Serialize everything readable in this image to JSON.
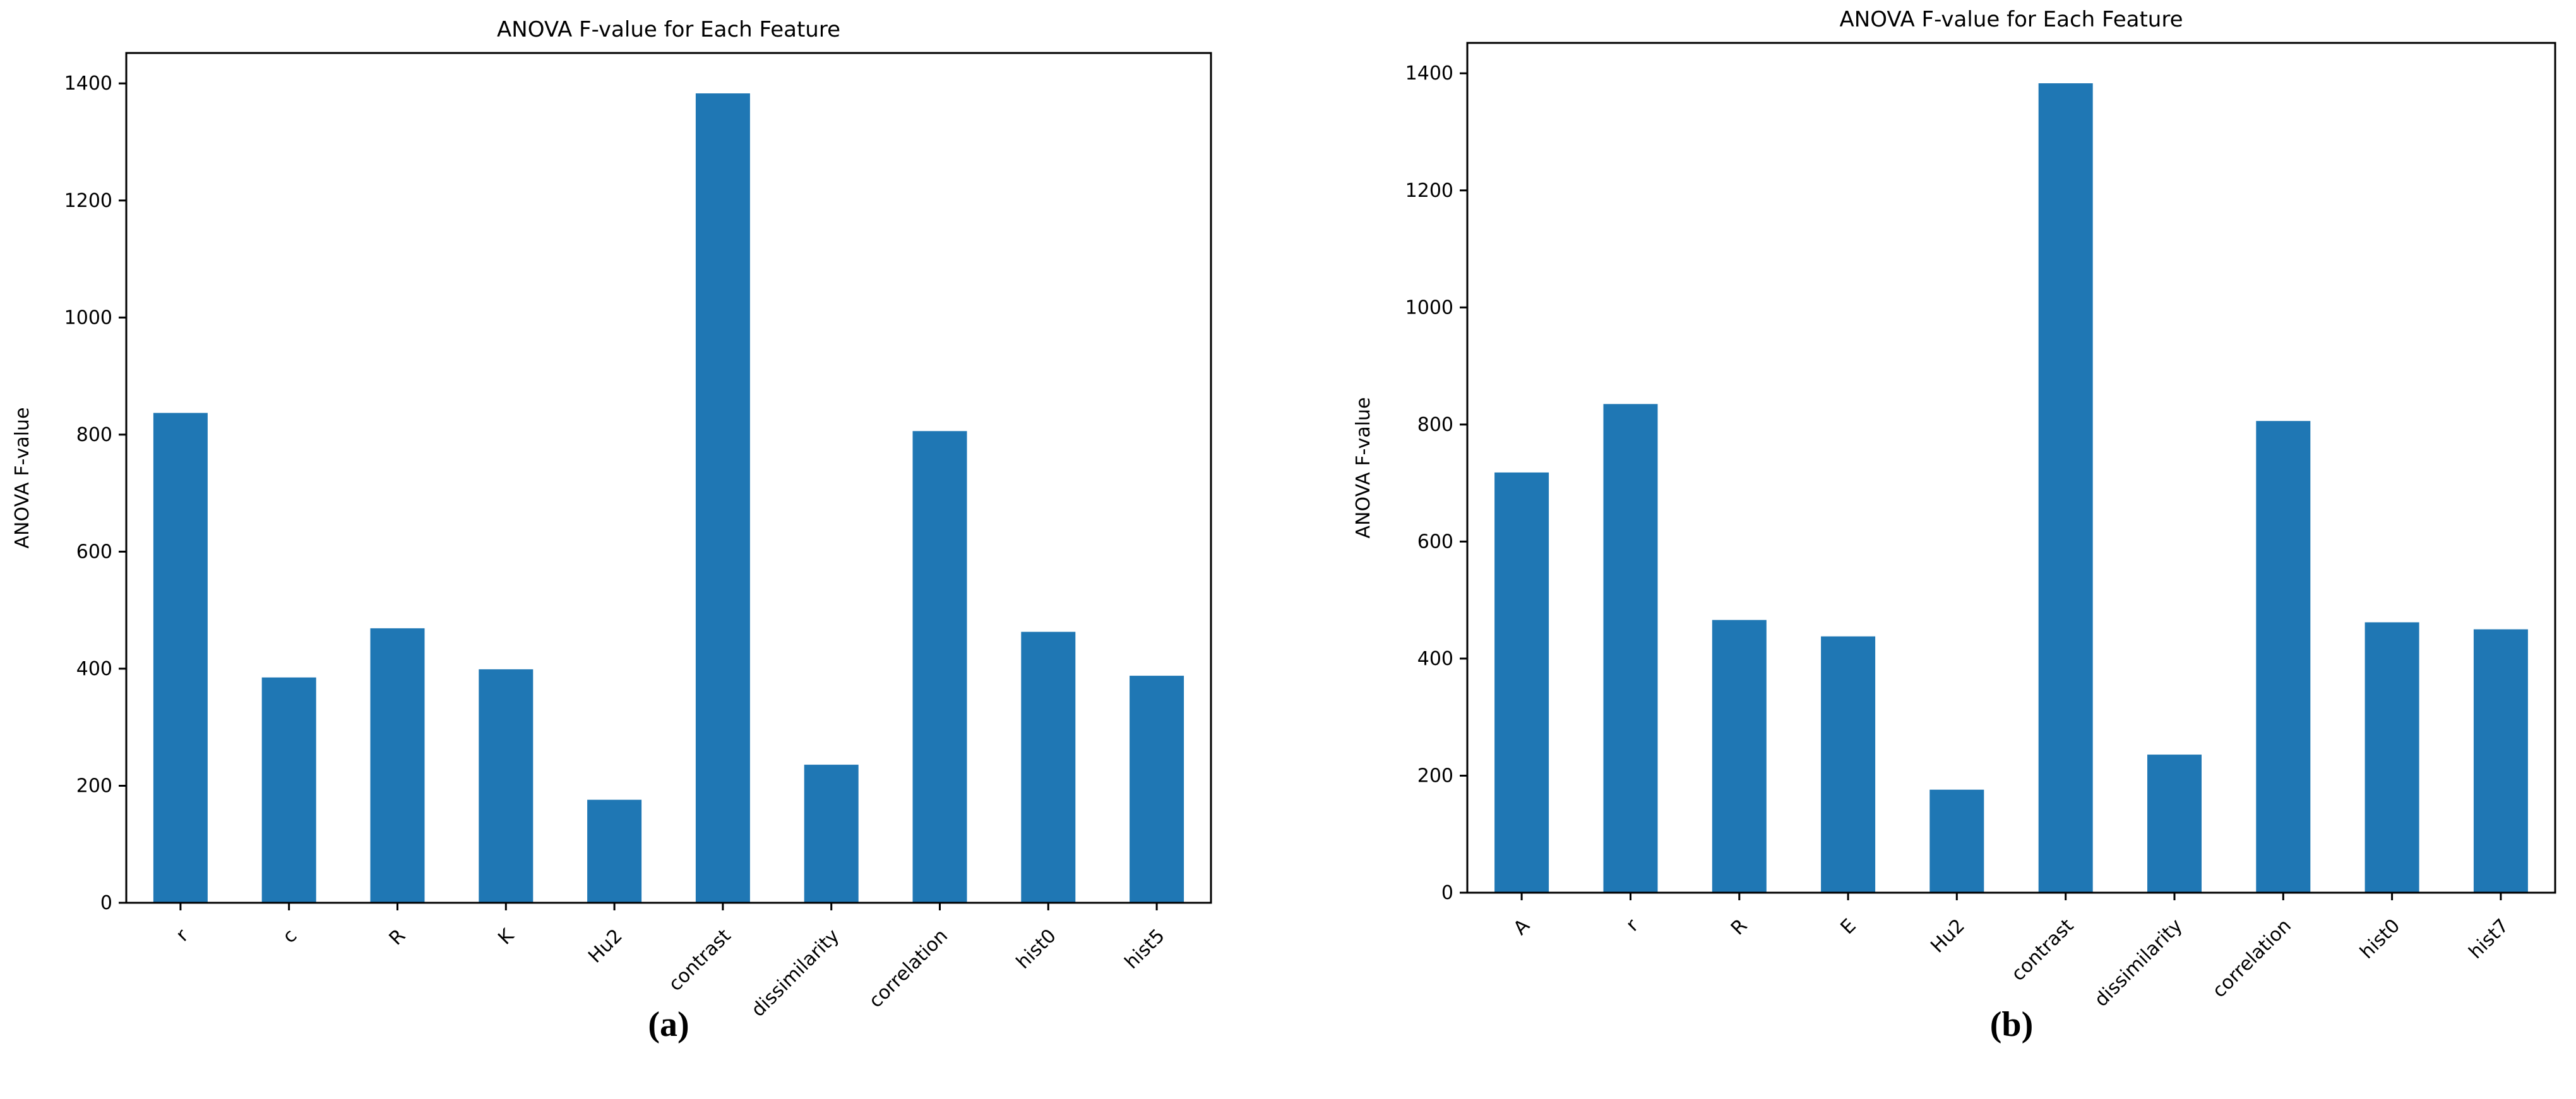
{
  "figure": {
    "background": "#ffffff",
    "text_color": "#000000"
  },
  "captions": {
    "a": "(a)",
    "b": "(b)"
  },
  "chart_data": [
    {
      "id": "a",
      "type": "bar",
      "title": "ANOVA F-value for Each Feature",
      "xlabel": "",
      "ylabel": "ANOVA F-value",
      "categories": [
        "r",
        "c",
        "R",
        "K",
        "Hu2",
        "contrast",
        "dissimilarity",
        "correlation",
        "hist0",
        "hist5"
      ],
      "values": [
        837,
        385,
        469,
        399,
        176,
        1383,
        236,
        806,
        463,
        388
      ],
      "ylim": [
        0,
        1452
      ],
      "yticks": [
        0,
        200,
        400,
        600,
        800,
        1000,
        1200,
        1400
      ],
      "grid": false,
      "legend": "none",
      "bar_color": "#1f77b4",
      "caption": "(a)"
    },
    {
      "id": "b",
      "type": "bar",
      "title": "ANOVA F-value for Each Feature",
      "xlabel": "",
      "ylabel": "ANOVA F-value",
      "categories": [
        "A",
        "r",
        "R",
        "E",
        "Hu2",
        "contrast",
        "dissimilarity",
        "correlation",
        "hist0",
        "hist7"
      ],
      "values": [
        718,
        835,
        466,
        438,
        176,
        1383,
        236,
        806,
        462,
        450
      ],
      "ylim": [
        0,
        1452
      ],
      "yticks": [
        0,
        200,
        400,
        600,
        800,
        1000,
        1200,
        1400
      ],
      "grid": false,
      "legend": "none",
      "bar_color": "#1f77b4",
      "caption": "(b)"
    }
  ]
}
